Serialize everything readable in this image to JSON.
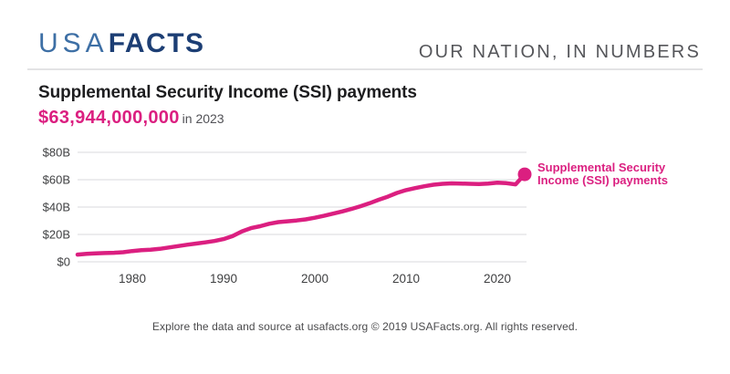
{
  "header": {
    "logo_usa": "USA",
    "logo_facts": "FACTS",
    "tagline": "OUR NATION, IN NUMBERS"
  },
  "title": "Supplemental Security Income (SSI) payments",
  "headline": {
    "value": "$63,944,000,000",
    "suffix": "in 2023"
  },
  "legend": {
    "line1": "Supplemental Security",
    "line2": "Income (SSI) payments"
  },
  "footer": "Explore the data and source at usafacts.org © 2019 USAFacts.org. All rights reserved.",
  "colors": {
    "background": "#ffffff",
    "accent_pink": "#db1f80",
    "logo_usa": "#3d6fa5",
    "logo_facts": "#1c3e74",
    "tagline_gray": "#55565a",
    "title_dark": "#1d1d1f",
    "suffix_gray": "#515156",
    "grid_gray": "#e6e6e8",
    "axis_gray": "#3f4042",
    "footer_gray": "#4a4a4c",
    "divider_gray": "#e3e3e5"
  },
  "chart_data": {
    "type": "line",
    "title": "Supplemental Security Income (SSI) payments",
    "series_name": "Supplemental Security Income (SSI) payments",
    "unit": "USD billions",
    "x": [
      1974,
      1975,
      1976,
      1977,
      1978,
      1979,
      1980,
      1981,
      1982,
      1983,
      1984,
      1985,
      1986,
      1987,
      1988,
      1989,
      1990,
      1991,
      1992,
      1993,
      1994,
      1995,
      1996,
      1997,
      1998,
      1999,
      2000,
      2001,
      2002,
      2003,
      2004,
      2005,
      2006,
      2007,
      2008,
      2009,
      2010,
      2011,
      2012,
      2013,
      2014,
      2015,
      2016,
      2017,
      2018,
      2019,
      2020,
      2021,
      2022,
      2023
    ],
    "values": [
      5.3,
      5.9,
      6.2,
      6.4,
      6.6,
      7.0,
      7.9,
      8.5,
      8.9,
      9.5,
      10.5,
      11.5,
      12.5,
      13.3,
      14.2,
      15.2,
      16.6,
      18.8,
      22.2,
      24.6,
      26.0,
      27.8,
      29.0,
      29.6,
      30.2,
      31.0,
      32.2,
      33.6,
      35.2,
      36.8,
      38.6,
      40.6,
      42.8,
      45.3,
      47.6,
      50.3,
      52.4,
      53.9,
      55.2,
      56.3,
      57.0,
      57.3,
      57.2,
      57.0,
      56.9,
      57.2,
      57.8,
      57.5,
      56.6,
      63.944
    ],
    "x_ticks": [
      1980,
      1990,
      2000,
      2010,
      2020
    ],
    "y_ticks": [
      {
        "v": 0,
        "label": "$0"
      },
      {
        "v": 20,
        "label": "$20B"
      },
      {
        "v": 40,
        "label": "$40B"
      },
      {
        "v": 60,
        "label": "$60B"
      },
      {
        "v": 80,
        "label": "$80B"
      }
    ],
    "xlim": [
      1974,
      2023
    ],
    "ylim": [
      0,
      80
    ],
    "xlabel": "",
    "ylabel": "",
    "grid": "horizontal",
    "end_marker": true,
    "legend_position": "right-of-last-point"
  }
}
